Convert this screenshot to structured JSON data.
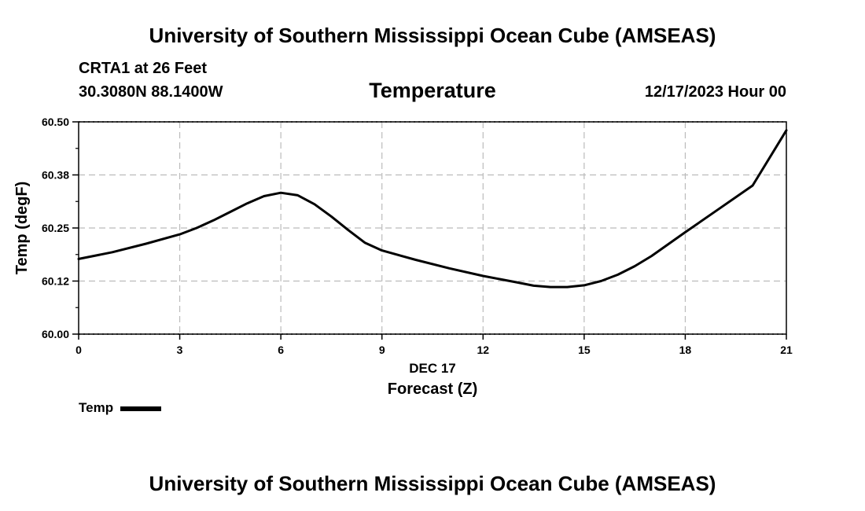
{
  "header": {
    "title": "University of Southern Mississippi Ocean Cube (AMSEAS)",
    "station": "CRTA1 at 26 Feet",
    "coords": "30.3080N  88.1400W",
    "variable": "Temperature",
    "datetime": "12/17/2023 Hour 00"
  },
  "footer": {
    "title": "University of Southern Mississippi Ocean Cube (AMSEAS)"
  },
  "legend": {
    "label": "Temp"
  },
  "chart_data": {
    "type": "line",
    "title": "Temperature",
    "xlabel": "Forecast (Z)",
    "xlabel_date": "DEC 17",
    "ylabel": "Temp (degF)",
    "xlim": [
      0,
      21
    ],
    "ylim": [
      60.0,
      60.5
    ],
    "xticks": [
      0,
      3,
      6,
      9,
      12,
      15,
      18,
      21
    ],
    "xtick_labels": [
      "0",
      "3",
      "6",
      "9",
      "12",
      "15",
      "18",
      "21"
    ],
    "yticks": [
      60.0,
      60.125,
      60.25,
      60.375,
      60.5
    ],
    "ytick_labels": [
      "60.00",
      "60.12",
      "60.25",
      "60.38",
      "60.50"
    ],
    "grid": true,
    "legend_position": "bottom-left",
    "line_color": "#000000",
    "series": [
      {
        "name": "Temp",
        "x": [
          0,
          1,
          2,
          3,
          3.5,
          4,
          4.5,
          5,
          5.5,
          6,
          6.5,
          7,
          7.5,
          8,
          8.5,
          9,
          10,
          11,
          12,
          13,
          13.5,
          14,
          14.5,
          15,
          15.5,
          16,
          16.5,
          17,
          18,
          19,
          20,
          21
        ],
        "values": [
          60.177,
          60.193,
          60.213,
          60.235,
          60.25,
          60.268,
          60.288,
          60.308,
          60.325,
          60.333,
          60.327,
          60.306,
          60.277,
          60.245,
          60.215,
          60.197,
          60.175,
          60.155,
          60.137,
          60.122,
          60.114,
          60.111,
          60.111,
          60.115,
          60.125,
          60.14,
          60.16,
          60.184,
          60.24,
          60.295,
          60.35,
          60.48
        ]
      }
    ]
  }
}
